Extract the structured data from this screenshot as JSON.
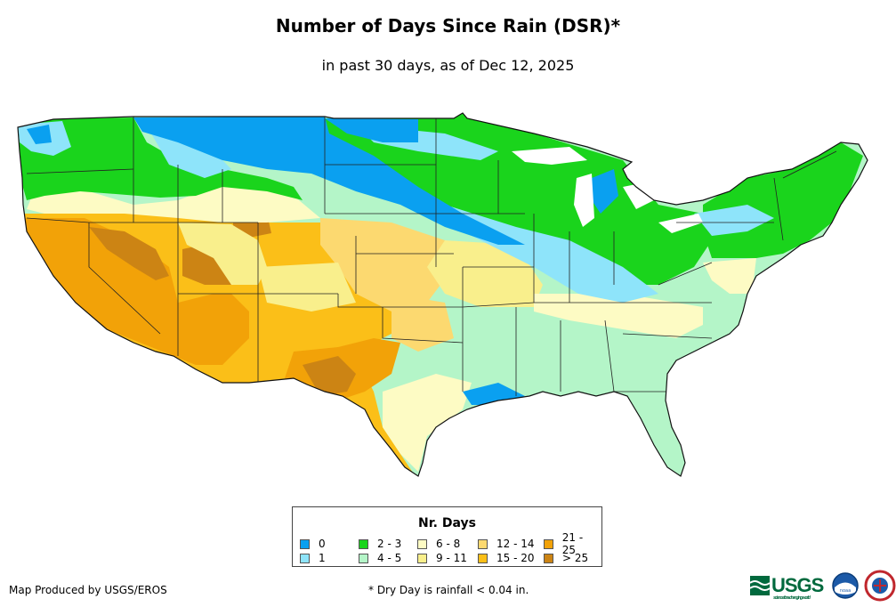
{
  "title": "Number of Days Since Rain (DSR)*",
  "subtitle": "in past 30 days, as of Dec 12, 2025",
  "legend": {
    "title": "Nr. Days",
    "items": [
      {
        "label": "0",
        "color": "#0aa0f0"
      },
      {
        "label": "1",
        "color": "#8ee4fa"
      },
      {
        "label": "2 - 3",
        "color": "#1ad41c"
      },
      {
        "label": "4 - 5",
        "color": "#b4f5c8"
      },
      {
        "label": "6 - 8",
        "color": "#fdfbc4"
      },
      {
        "label": "9 - 11",
        "color": "#f9ef8c"
      },
      {
        "label": "12 - 14",
        "color": "#fcd970"
      },
      {
        "label": "15 - 20",
        "color": "#fbbf18"
      },
      {
        "label": "21 - 25",
        "color": "#f2a208"
      },
      {
        "label": "> 25",
        "color": "#cc8414"
      }
    ]
  },
  "footer": {
    "credit": "Map Produced by USGS/EROS",
    "footnote": "* Dry Day is rainfall < 0.04 in."
  },
  "logos": {
    "usgs": "USGS",
    "usgs_tagline": "science for a changing world",
    "noaa": "noaa"
  }
}
